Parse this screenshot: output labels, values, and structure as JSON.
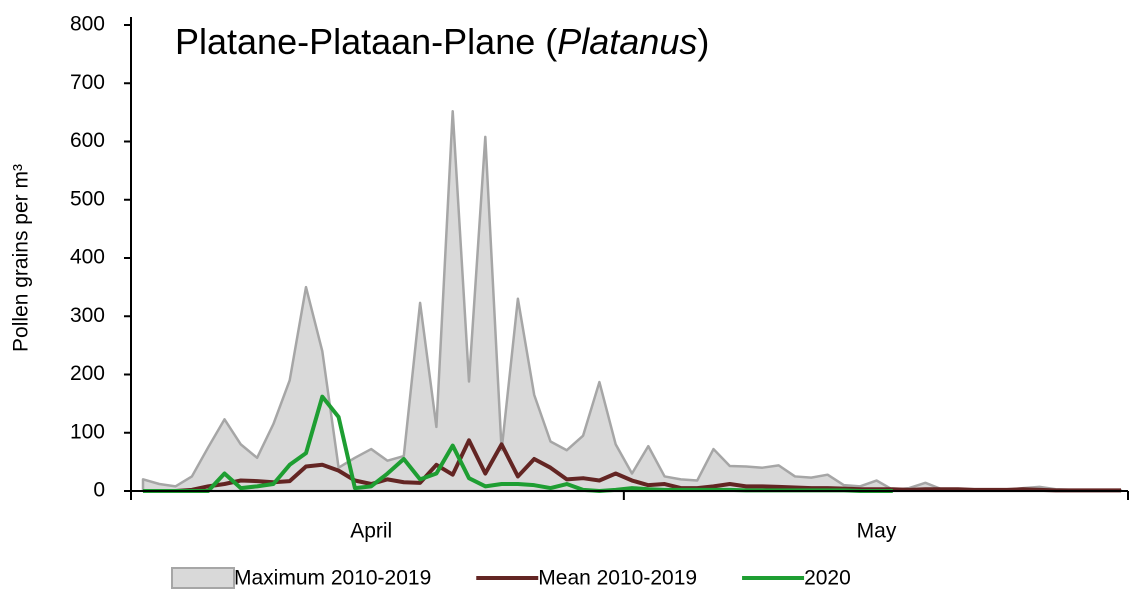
{
  "chart_data": {
    "type": "area_line",
    "title_parts": [
      "Platane-Plataan-Plane (",
      "Platanus",
      ")"
    ],
    "ylabel": "Pollen grains per m³",
    "categories": [
      null,
      null,
      null,
      null,
      null,
      null,
      null,
      null,
      null,
      null,
      null,
      null,
      null,
      null,
      "April",
      null,
      null,
      null,
      null,
      null,
      null,
      null,
      null,
      null,
      null,
      null,
      null,
      null,
      null,
      null,
      null,
      null,
      null,
      null,
      null,
      null,
      null,
      null,
      null,
      null,
      null,
      null,
      null,
      null,
      null,
      "May",
      null,
      null,
      null,
      null,
      null,
      null,
      null,
      null,
      null,
      null,
      null,
      null,
      null,
      null,
      null
    ],
    "ylim": [
      0,
      800
    ],
    "yticks": [
      0,
      100,
      200,
      300,
      400,
      500,
      600,
      700,
      800
    ],
    "series": [
      {
        "name": "Maximum 2010-2019",
        "kind": "area",
        "color": "#d9d9d9",
        "edge": "#a6a6a6",
        "values": [
          20,
          12,
          8,
          25,
          75,
          123,
          80,
          57,
          115,
          190,
          350,
          240,
          40,
          57,
          72,
          52,
          60,
          323,
          110,
          652,
          188,
          608,
          70,
          330,
          165,
          85,
          70,
          95,
          187,
          80,
          30,
          77,
          25,
          20,
          18,
          72,
          43,
          42,
          40,
          44,
          25,
          23,
          28,
          10,
          8,
          18,
          2,
          5,
          14,
          3,
          2,
          2,
          3,
          2,
          5,
          7,
          3,
          2,
          2,
          1,
          1
        ]
      },
      {
        "name": "Mean 2010-2019",
        "kind": "line",
        "color": "#632523",
        "values": [
          0,
          0,
          0,
          2,
          8,
          12,
          18,
          17,
          15,
          17,
          42,
          45,
          35,
          18,
          12,
          20,
          15,
          14,
          45,
          28,
          87,
          30,
          80,
          25,
          55,
          40,
          20,
          22,
          18,
          30,
          18,
          10,
          12,
          5,
          5,
          8,
          12,
          8,
          8,
          7,
          6,
          5,
          5,
          4,
          3,
          3,
          3,
          2,
          3,
          3,
          3,
          2,
          2,
          2,
          3,
          2,
          1,
          1,
          1,
          1,
          1
        ]
      },
      {
        "name": "2020",
        "kind": "line",
        "color": "#1e9e32",
        "values": [
          0,
          0,
          0,
          0,
          0,
          30,
          5,
          8,
          12,
          45,
          65,
          162,
          127,
          5,
          8,
          30,
          55,
          20,
          30,
          78,
          22,
          8,
          12,
          12,
          10,
          5,
          12,
          2,
          0,
          2,
          5,
          3,
          2,
          2,
          2,
          2,
          2,
          1,
          1,
          1,
          1,
          1,
          1,
          1,
          0,
          0,
          0,
          null,
          null,
          null,
          null,
          null,
          null,
          null,
          null,
          null,
          null,
          null,
          null,
          null,
          null
        ]
      }
    ]
  }
}
